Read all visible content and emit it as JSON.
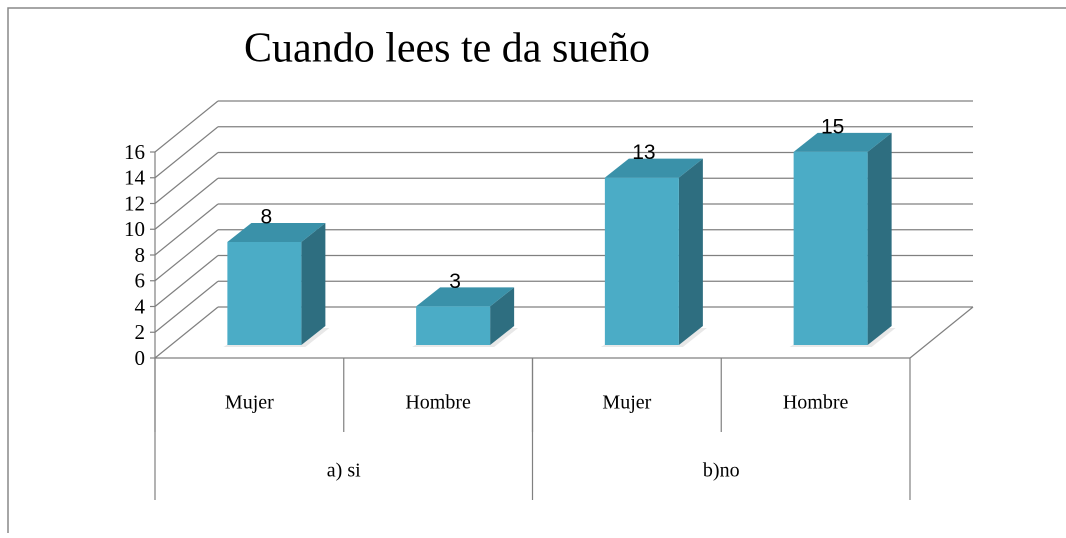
{
  "chart_data": {
    "type": "bar",
    "title": "Cuando lees te da sueño",
    "categories": [
      "Mujer",
      "Hombre",
      "Mujer",
      "Hombre"
    ],
    "groups": [
      "a) si",
      "b)no"
    ],
    "values": [
      8,
      3,
      13,
      15
    ],
    "color": "#4bacc6",
    "ylim": [
      0,
      16
    ],
    "yticks": [
      0,
      2,
      4,
      6,
      8,
      10,
      12,
      14,
      16
    ],
    "grid": true
  }
}
